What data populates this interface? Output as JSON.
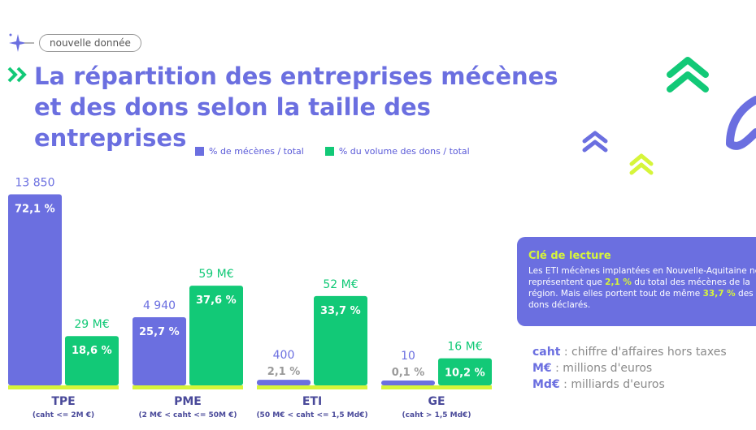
{
  "header": {
    "tag": "nouvelle donnée",
    "title_line1": "La répartition des entreprises mécènes",
    "title_line2": "et des dons selon la taille des entreprises"
  },
  "legend": {
    "series1": "% de mécènes / total",
    "series2": "% du volume des dons / total"
  },
  "colors": {
    "purple": "#6b6fe0",
    "green": "#12c977",
    "lime": "#d6f53a",
    "gray": "#9a9a9a"
  },
  "chart_data": {
    "type": "bar",
    "categories": [
      "TPE",
      "PME",
      "ETI",
      "GE"
    ],
    "category_sublabels": [
      "(caht <= 2M €)",
      "(2 M€ < caht <= 50M €)",
      "(50 M€ < caht <= 1,5 Md€)",
      "(caht > 1,5 Md€)"
    ],
    "series": [
      {
        "name": "% de mécènes / total",
        "values": [
          72.1,
          25.7,
          2.1,
          0.1
        ],
        "value_labels": [
          "72,1 %",
          "25,7 %",
          "2,1 %",
          "0,1 %"
        ],
        "top_labels": [
          "13 850",
          "4 940",
          "400",
          "10"
        ]
      },
      {
        "name": "% du volume des dons / total",
        "values": [
          18.6,
          37.6,
          33.7,
          10.2
        ],
        "value_labels": [
          "18,6 %",
          "37,6 %",
          "33,7 %",
          "10,2 %"
        ],
        "top_labels": [
          "29 M€",
          "59 M€",
          "52 M€",
          "16 M€"
        ]
      }
    ],
    "ylim": [
      0,
      75
    ],
    "grid": false,
    "legend": "top"
  },
  "reading_key": {
    "title": "Clé de lecture",
    "part1": "Les ETI mécènes implantées en Nouvelle-Aquitaine ne représentent que ",
    "hl1": "2,1 %",
    "part2": " du total des mécènes de la région. Mais elles portent tout de même ",
    "hl2": "33,7 %",
    "part3": " des dons déclarés."
  },
  "abbreviations": [
    {
      "term": "caht",
      "definition": " : chiffre d'affaires hors taxes"
    },
    {
      "term": "M€",
      "definition": " : millions d'euros"
    },
    {
      "term": "Md€",
      "definition": " : milliards d'euros"
    }
  ]
}
